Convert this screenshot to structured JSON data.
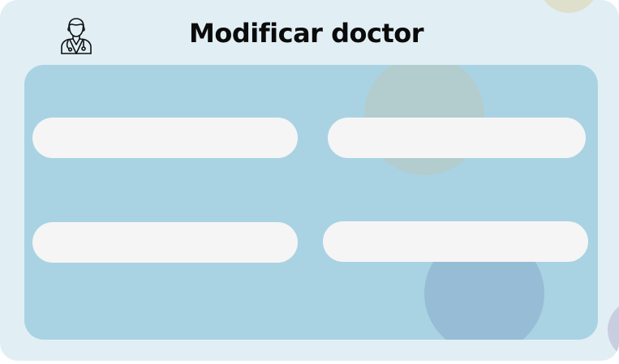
{
  "header": {
    "title": "Modificar doctor",
    "icon": "doctor-icon"
  },
  "form": {
    "fields": [
      {
        "value": "",
        "placeholder": ""
      },
      {
        "value": "",
        "placeholder": ""
      },
      {
        "value": "",
        "placeholder": ""
      },
      {
        "value": "",
        "placeholder": ""
      }
    ]
  },
  "colors": {
    "card_background": "#e1eff5",
    "panel_background": "#a9d3e3",
    "field_background": "#f5f5f5",
    "title_text": "#0b0b0b"
  }
}
